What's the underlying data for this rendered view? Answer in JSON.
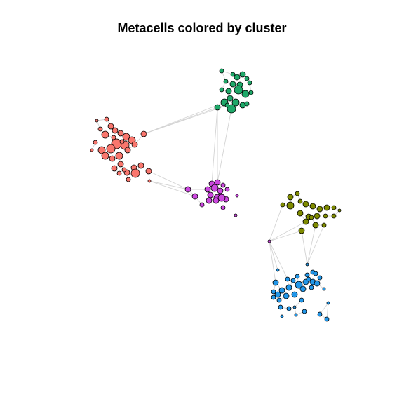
{
  "chart_data": {
    "type": "scatter",
    "title": "Metacells colored by cluster",
    "xlabel": "",
    "ylabel": "",
    "grid": false,
    "axes_visible": false,
    "edge_color": "#d3d3d3",
    "node_outline_color": "#000000",
    "series": [
      {
        "color": "#f8766d",
        "points": [
          [
            138,
            172,
            2
          ],
          [
            152,
            170,
            3
          ],
          [
            143,
            184,
            3
          ],
          [
            158,
            180,
            4
          ],
          [
            150,
            192,
            5
          ],
          [
            164,
            186,
            4
          ],
          [
            172,
            190,
            4
          ],
          [
            180,
            195,
            5
          ],
          [
            188,
            200,
            5
          ],
          [
            205,
            191,
            4
          ],
          [
            178,
            207,
            6
          ],
          [
            166,
            205,
            7
          ],
          [
            158,
            212,
            6
          ],
          [
            145,
            214,
            5
          ],
          [
            136,
            203,
            3
          ],
          [
            131,
            214,
            2
          ],
          [
            150,
            222,
            5
          ],
          [
            160,
            226,
            4
          ],
          [
            170,
            222,
            5
          ],
          [
            182,
            214,
            4
          ],
          [
            192,
            206,
            4
          ],
          [
            172,
            234,
            4
          ],
          [
            163,
            240,
            4
          ],
          [
            181,
            246,
            4
          ],
          [
            191,
            239,
            4
          ],
          [
            201,
            236,
            4
          ],
          [
            193,
            247,
            6
          ],
          [
            212,
            244,
            4
          ],
          [
            177,
            242,
            3
          ],
          [
            183,
            256,
            3
          ],
          [
            170,
            247,
            3
          ],
          [
            213,
            258,
            2
          ],
          [
            162,
            196,
            3
          ],
          [
            174,
            202,
            3
          ]
        ]
      },
      {
        "color": "#1fa869",
        "points": [
          [
            316,
            101,
            3
          ],
          [
            332,
            106,
            3
          ],
          [
            346,
            106,
            4
          ],
          [
            338,
            110,
            4
          ],
          [
            352,
            112,
            3
          ],
          [
            322,
            116,
            3
          ],
          [
            332,
            120,
            4
          ],
          [
            342,
            121,
            4
          ],
          [
            356,
            118,
            3
          ],
          [
            316,
            128,
            3
          ],
          [
            326,
            130,
            4
          ],
          [
            340,
            128,
            6
          ],
          [
            350,
            134,
            5
          ],
          [
            358,
            132,
            3
          ],
          [
            328,
            140,
            4
          ],
          [
            320,
            146,
            5
          ],
          [
            336,
            146,
            5
          ],
          [
            346,
            150,
            4
          ],
          [
            310,
            153,
            4
          ],
          [
            330,
            155,
            6
          ],
          [
            352,
            148,
            3
          ],
          [
            324,
            150,
            3
          ]
        ]
      },
      {
        "color": "#cb47de",
        "points": [
          [
            268,
            270,
            4
          ],
          [
            302,
            262,
            4
          ],
          [
            310,
            260,
            4
          ],
          [
            318,
            264,
            3
          ],
          [
            296,
            270,
            4
          ],
          [
            306,
            268,
            5
          ],
          [
            314,
            272,
            4
          ],
          [
            324,
            270,
            3
          ],
          [
            278,
            280,
            4
          ],
          [
            300,
            278,
            4
          ],
          [
            310,
            282,
            5
          ],
          [
            322,
            284,
            4
          ],
          [
            298,
            286,
            4
          ],
          [
            308,
            286,
            4
          ],
          [
            316,
            282,
            5
          ],
          [
            338,
            279,
            2
          ],
          [
            288,
            292,
            3
          ],
          [
            318,
            296,
            3
          ],
          [
            336,
            307,
            2
          ],
          [
            384,
            344,
            2
          ]
        ]
      },
      {
        "color": "#7f8b00",
        "points": [
          [
            414,
            281,
            4
          ],
          [
            424,
            276,
            3
          ],
          [
            428,
            287,
            3
          ],
          [
            403,
            292,
            3
          ],
          [
            414,
            293,
            5
          ],
          [
            436,
            291,
            4
          ],
          [
            446,
            294,
            4
          ],
          [
            456,
            298,
            4
          ],
          [
            466,
            296,
            4
          ],
          [
            476,
            296,
            3
          ],
          [
            484,
            300,
            2
          ],
          [
            428,
            304,
            4
          ],
          [
            440,
            309,
            4
          ],
          [
            452,
            308,
            4
          ],
          [
            464,
            308,
            3
          ],
          [
            476,
            308,
            3
          ],
          [
            436,
            316,
            4
          ],
          [
            450,
            321,
            4
          ],
          [
            462,
            321,
            3
          ],
          [
            430,
            329,
            4
          ],
          [
            444,
            310,
            3
          ]
        ]
      },
      {
        "color": "#2196e8",
        "points": [
          [
            393,
            403,
            4
          ],
          [
            410,
            398,
            3
          ],
          [
            424,
            394,
            3
          ],
          [
            438,
            392,
            3
          ],
          [
            446,
            388,
            3
          ],
          [
            456,
            396,
            3
          ],
          [
            436,
            402,
            4
          ],
          [
            446,
            402,
            4
          ],
          [
            426,
            406,
            5
          ],
          [
            412,
            410,
            4
          ],
          [
            402,
            414,
            4
          ],
          [
            390,
            416,
            3
          ],
          [
            432,
            412,
            4
          ],
          [
            444,
            410,
            3
          ],
          [
            462,
            412,
            2
          ],
          [
            396,
            420,
            4
          ],
          [
            408,
            422,
            4
          ],
          [
            420,
            420,
            4
          ],
          [
            398,
            428,
            3
          ],
          [
            390,
            424,
            3
          ],
          [
            430,
            428,
            3
          ],
          [
            412,
            440,
            3
          ],
          [
            400,
            438,
            3
          ],
          [
            420,
            438,
            2
          ],
          [
            434,
            444,
            3
          ],
          [
            402,
            451,
            2
          ],
          [
            422,
            449,
            2
          ],
          [
            456,
            448,
            3
          ],
          [
            466,
            455,
            3
          ],
          [
            450,
            390,
            3
          ],
          [
            440,
            398,
            3
          ],
          [
            418,
            400,
            3
          ],
          [
            452,
            404,
            4
          ],
          [
            468,
            432,
            2
          ],
          [
            396,
            385,
            2
          ],
          [
            438,
            377,
            2
          ]
        ]
      }
    ]
  }
}
